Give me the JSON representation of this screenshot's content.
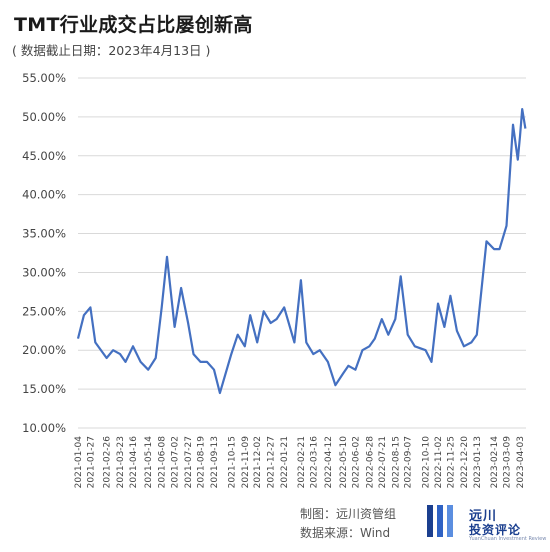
{
  "header": {
    "title": "TMT行业成交占比屡创新高",
    "subtitle": "( 数据截止日期：2023年4月13日 )"
  },
  "footer": {
    "credit": "制图：远川资管组",
    "source": "数据来源：Wind"
  },
  "logo": {
    "name_line1": "远川",
    "name_line2": "投资评论",
    "tagline": "YuanChuan Investment Review"
  },
  "colors": {
    "line": "#4470c1",
    "grid": "#d9d9d9",
    "logo": "#1b3f8f"
  },
  "chart_data": {
    "type": "line",
    "title": "TMT行业成交占比屡创新高",
    "ylim": [
      0.1,
      0.55
    ],
    "yticks": [
      "10.00%",
      "15.00%",
      "20.00%",
      "25.00%",
      "30.00%",
      "35.00%",
      "40.00%",
      "45.00%",
      "50.00%",
      "55.00%"
    ],
    "xticks": [
      "2021-01-04",
      "2021-01-27",
      "2021-02-26",
      "2021-03-23",
      "2021-04-16",
      "2021-05-14",
      "2021-06-08",
      "2021-07-02",
      "2021-07-27",
      "2021-08-19",
      "2021-09-13",
      "2021-10-15",
      "2021-11-09",
      "2021-12-02",
      "2021-12-27",
      "2022-01-21",
      "2022-02-21",
      "2022-03-16",
      "2022-04-12",
      "2022-05-10",
      "2022-06-02",
      "2022-06-28",
      "2022-07-21",
      "2022-08-15",
      "2022-09-07",
      "2022-10-10",
      "2022-11-02",
      "2022-11-25",
      "2022-12-20",
      "2023-01-13",
      "2023-02-14",
      "2023-03-09",
      "2023-04-03"
    ],
    "grid": true,
    "legend": "none",
    "series": [
      {
        "x": [
          "2021-01-04",
          "2021-01-15",
          "2021-01-27",
          "2021-02-05",
          "2021-02-26",
          "2021-03-10",
          "2021-03-23",
          "2021-04-02",
          "2021-04-16",
          "2021-04-30",
          "2021-05-14",
          "2021-05-28",
          "2021-06-08",
          "2021-06-18",
          "2021-07-02",
          "2021-07-14",
          "2021-07-27",
          "2021-08-06",
          "2021-08-19",
          "2021-08-31",
          "2021-09-13",
          "2021-09-24",
          "2021-10-15",
          "2021-10-27",
          "2021-11-09",
          "2021-11-19",
          "2021-12-02",
          "2021-12-14",
          "2021-12-27",
          "2022-01-07",
          "2022-01-21",
          "2022-02-09",
          "2022-02-21",
          "2022-03-03",
          "2022-03-16",
          "2022-03-28",
          "2022-04-12",
          "2022-04-26",
          "2022-05-10",
          "2022-05-20",
          "2022-06-02",
          "2022-06-15",
          "2022-06-28",
          "2022-07-08",
          "2022-07-21",
          "2022-08-02",
          "2022-08-15",
          "2022-08-25",
          "2022-09-07",
          "2022-09-20",
          "2022-10-10",
          "2022-10-21",
          "2022-11-02",
          "2022-11-14",
          "2022-11-25",
          "2022-12-07",
          "2022-12-20",
          "2023-01-03",
          "2023-01-13",
          "2023-01-31",
          "2023-02-14",
          "2023-02-24",
          "2023-03-09",
          "2023-03-21",
          "2023-03-30",
          "2023-04-03",
          "2023-04-07",
          "2023-04-13"
        ],
        "values": [
          0.215,
          0.245,
          0.255,
          0.21,
          0.19,
          0.2,
          0.195,
          0.185,
          0.205,
          0.185,
          0.175,
          0.19,
          0.255,
          0.32,
          0.23,
          0.28,
          0.235,
          0.195,
          0.185,
          0.185,
          0.175,
          0.145,
          0.195,
          0.22,
          0.205,
          0.245,
          0.21,
          0.25,
          0.235,
          0.24,
          0.255,
          0.21,
          0.29,
          0.21,
          0.195,
          0.2,
          0.185,
          0.155,
          0.17,
          0.18,
          0.175,
          0.2,
          0.205,
          0.215,
          0.24,
          0.22,
          0.24,
          0.295,
          0.22,
          0.205,
          0.2,
          0.185,
          0.26,
          0.23,
          0.27,
          0.225,
          0.205,
          0.21,
          0.22,
          0.34,
          0.33,
          0.33,
          0.36,
          0.49,
          0.445,
          0.475,
          0.51,
          0.485
        ]
      }
    ]
  }
}
